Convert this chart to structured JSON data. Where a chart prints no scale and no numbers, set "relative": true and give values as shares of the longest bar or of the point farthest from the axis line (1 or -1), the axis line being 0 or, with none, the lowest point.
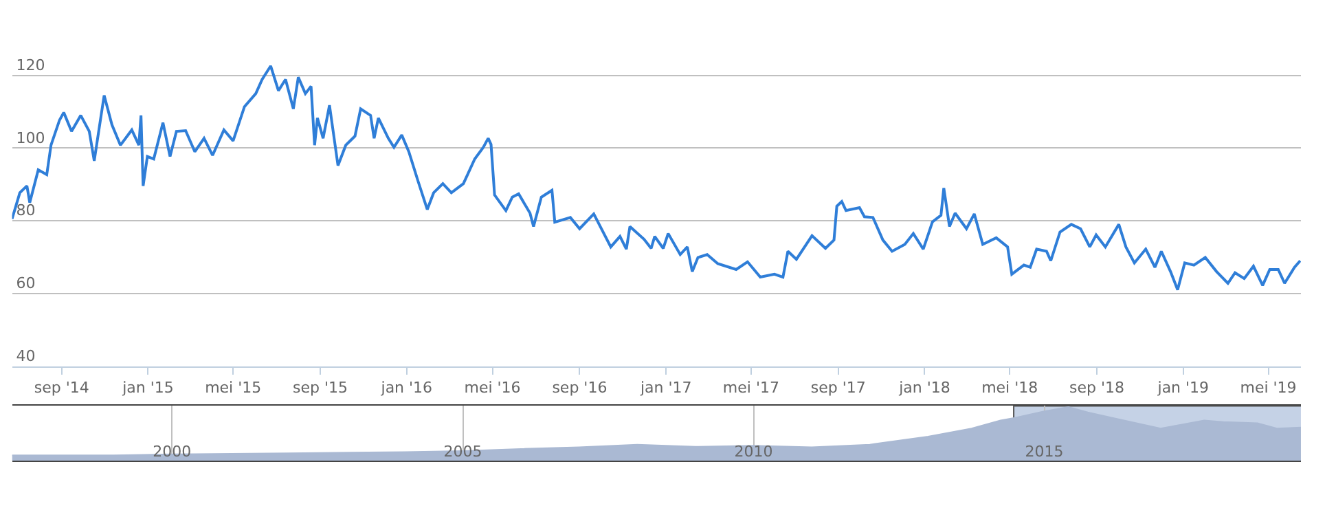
{
  "chart_data": [
    {
      "type": "line",
      "x": [
        "2014-06-23",
        "2014-07-04",
        "2014-07-14",
        "2014-07-18",
        "2014-07-30",
        "2014-08-11",
        "2014-08-17",
        "2014-08-29",
        "2014-09-04",
        "2014-09-15",
        "2014-09-28",
        "2014-10-10",
        "2014-10-17",
        "2014-10-31",
        "2014-11-11",
        "2014-11-23",
        "2014-12-09",
        "2014-12-19",
        "2014-12-22",
        "2014-12-25",
        "2014-12-31",
        "2015-01-09",
        "2015-01-22",
        "2015-02-01",
        "2015-02-10",
        "2015-02-23",
        "2015-03-08",
        "2015-03-21",
        "2015-04-02",
        "2015-04-18",
        "2015-05-01",
        "2015-05-17",
        "2015-06-02",
        "2015-06-11",
        "2015-06-23",
        "2015-07-04",
        "2015-07-14",
        "2015-07-25",
        "2015-08-01",
        "2015-08-11",
        "2015-08-19",
        "2015-08-24",
        "2015-08-28",
        "2015-09-05",
        "2015-09-14",
        "2015-09-26",
        "2015-10-07",
        "2015-10-20",
        "2015-10-28",
        "2015-11-11",
        "2015-11-16",
        "2015-11-22",
        "2015-12-06",
        "2015-12-14",
        "2015-12-25",
        "2016-01-04",
        "2016-01-17",
        "2016-01-30",
        "2016-02-08",
        "2016-02-21",
        "2016-03-04",
        "2016-03-21",
        "2016-04-06",
        "2016-04-18",
        "2016-04-25",
        "2016-04-29",
        "2016-05-04",
        "2016-05-20",
        "2016-05-29",
        "2016-06-07",
        "2016-06-23",
        "2016-06-28",
        "2016-07-09",
        "2016-07-24",
        "2016-07-28",
        "2016-08-19",
        "2016-09-01",
        "2016-09-21",
        "2016-10-15",
        "2016-10-28",
        "2016-11-06",
        "2016-11-11",
        "2016-12-01",
        "2016-12-11",
        "2016-12-16",
        "2016-12-28",
        "2017-01-04",
        "2017-01-21",
        "2017-01-31",
        "2017-02-07",
        "2017-02-15",
        "2017-02-28",
        "2017-03-15",
        "2017-04-10",
        "2017-04-26",
        "2017-05-14",
        "2017-06-03",
        "2017-06-15",
        "2017-06-22",
        "2017-07-04",
        "2017-07-26",
        "2017-08-14",
        "2017-08-26",
        "2017-08-30",
        "2017-09-06",
        "2017-09-12",
        "2017-10-01",
        "2017-10-08",
        "2017-10-20",
        "2017-11-03",
        "2017-11-16",
        "2017-12-04",
        "2017-12-16",
        "2017-12-30",
        "2018-01-12",
        "2018-01-24",
        "2018-01-28",
        "2018-02-05",
        "2018-02-13",
        "2018-03-01",
        "2018-03-12",
        "2018-03-24",
        "2018-04-12",
        "2018-04-28",
        "2018-05-04",
        "2018-05-21",
        "2018-05-30",
        "2018-06-08",
        "2018-06-22",
        "2018-06-28",
        "2018-07-11",
        "2018-07-27",
        "2018-08-09",
        "2018-08-22",
        "2018-08-31",
        "2018-09-13",
        "2018-10-02",
        "2018-10-12",
        "2018-10-24",
        "2018-11-09",
        "2018-11-22",
        "2018-12-01",
        "2018-12-14",
        "2018-12-24",
        "2019-01-03",
        "2019-01-16",
        "2019-02-01",
        "2019-02-17",
        "2019-03-05",
        "2019-03-15",
        "2019-03-28",
        "2019-04-10",
        "2019-04-23",
        "2019-05-03",
        "2019-05-15",
        "2019-05-24",
        "2019-06-07",
        "2019-06-15"
      ],
      "series": [
        {
          "color": "#2f7ed8",
          "values": [
            80.5,
            87.7,
            89.6,
            85,
            94,
            92.7,
            100.8,
            107.7,
            109.8,
            104.6,
            109,
            104.6,
            96.5,
            114.5,
            106.4,
            100.8,
            105,
            100.8,
            109,
            89.6,
            97.7,
            97,
            107,
            97.7,
            104.6,
            104.8,
            99,
            102.7,
            98,
            105,
            102,
            111.4,
            115,
            118.9,
            122.6,
            115.8,
            118.9,
            110.8,
            119.5,
            115,
            117,
            100.8,
            108.3,
            102.7,
            111.8,
            95.2,
            100.8,
            103.3,
            110.8,
            109,
            102.7,
            108.3,
            102.7,
            100.2,
            103.6,
            99,
            90.9,
            83.1,
            87.7,
            90.2,
            87.7,
            90.2,
            97,
            100.2,
            102.7,
            101,
            87.1,
            82.8,
            86.5,
            87.4,
            82.1,
            78.4,
            86.5,
            88.4,
            79.6,
            80.9,
            77.8,
            81.9,
            72.8,
            75.7,
            72.2,
            78.4,
            74.9,
            72.4,
            75.7,
            72.4,
            76.5,
            70.7,
            72.8,
            66,
            69.9,
            70.7,
            68.2,
            66.6,
            68.7,
            64.5,
            65.3,
            64.5,
            71.6,
            69.4,
            75.9,
            72.4,
            74.7,
            84,
            85.3,
            82.8,
            83.6,
            81.1,
            80.9,
            74.7,
            71.6,
            73.5,
            76.5,
            72.2,
            79.7,
            81.5,
            89,
            78.4,
            82.1,
            77.8,
            81.9,
            73.5,
            75.3,
            72.8,
            65.3,
            67.8,
            67.2,
            72.2,
            71.6,
            69,
            76.9,
            79,
            77.8,
            72.8,
            76.1,
            72.8,
            79,
            72.8,
            68.4,
            72.2,
            67.2,
            71.6,
            66,
            61,
            68.4,
            67.8,
            69.9,
            66,
            62.8,
            65.7,
            64.1,
            67.5,
            62.2,
            66.6,
            66.6,
            62.8,
            67.2,
            69
          ]
        }
      ],
      "xlim": [
        "2014-06-23",
        "2019-06-16"
      ],
      "xticks": [
        {
          "value": "2014-09-01",
          "label": "sep '14"
        },
        {
          "value": "2015-01-01",
          "label": "jan '15"
        },
        {
          "value": "2015-05-01",
          "label": "mei '15"
        },
        {
          "value": "2015-09-01",
          "label": "sep '15"
        },
        {
          "value": "2016-01-01",
          "label": "jan '16"
        },
        {
          "value": "2016-05-01",
          "label": "mei '16"
        },
        {
          "value": "2016-09-01",
          "label": "sep '16"
        },
        {
          "value": "2017-01-01",
          "label": "jan '17"
        },
        {
          "value": "2017-05-01",
          "label": "mei '17"
        },
        {
          "value": "2017-09-01",
          "label": "sep '17"
        },
        {
          "value": "2018-01-01",
          "label": "jan '18"
        },
        {
          "value": "2018-05-01",
          "label": "mei '18"
        },
        {
          "value": "2018-09-01",
          "label": "sep '18"
        },
        {
          "value": "2019-01-01",
          "label": "jan '19"
        },
        {
          "value": "2019-05-01",
          "label": "mei '19"
        }
      ],
      "ylim": [
        40,
        140
      ],
      "yticks": [
        40,
        60,
        80,
        100,
        120
      ],
      "grid": "y",
      "marker": "none",
      "line_style": "solid"
    },
    {
      "type": "area",
      "relative": true,
      "x": [
        "1997-04",
        "1999-01",
        "2000-01",
        "2002-01",
        "2004-01",
        "2005-01",
        "2006-01",
        "2007-01",
        "2008-01",
        "2009-01",
        "2010-01",
        "2011-01",
        "2012-01",
        "2013-01",
        "2013-10",
        "2014-04",
        "2014-07",
        "2015-01",
        "2015-06",
        "2015-10",
        "2016-04",
        "2017-01",
        "2017-10",
        "2018-02",
        "2018-09",
        "2019-01",
        "2019-06"
      ],
      "series": [
        {
          "color": "#aab9d3",
          "values": [
            0.1,
            0.1,
            0.12,
            0.14,
            0.16,
            0.18,
            0.22,
            0.25,
            0.3,
            0.26,
            0.28,
            0.25,
            0.3,
            0.45,
            0.6,
            0.75,
            0.8,
            0.92,
            1,
            0.9,
            0.78,
            0.6,
            0.75,
            0.72,
            0.7,
            0.6,
            0.62
          ]
        }
      ],
      "xlim": [
        "1997-04",
        "2019-06"
      ],
      "xticks": [
        {
          "value": "2000-01-01",
          "label": "2000"
        },
        {
          "value": "2005-01-01",
          "label": "2005"
        },
        {
          "value": "2010-01-01",
          "label": "2010"
        },
        {
          "value": "2015-01-01",
          "label": "2015"
        }
      ],
      "grid": "x",
      "tick_labels": "x",
      "bands": [
        {
          "axis": "x",
          "from": "2014-06-23",
          "to": "2019-06-16",
          "color": "#c5d2e6"
        }
      ]
    }
  ]
}
